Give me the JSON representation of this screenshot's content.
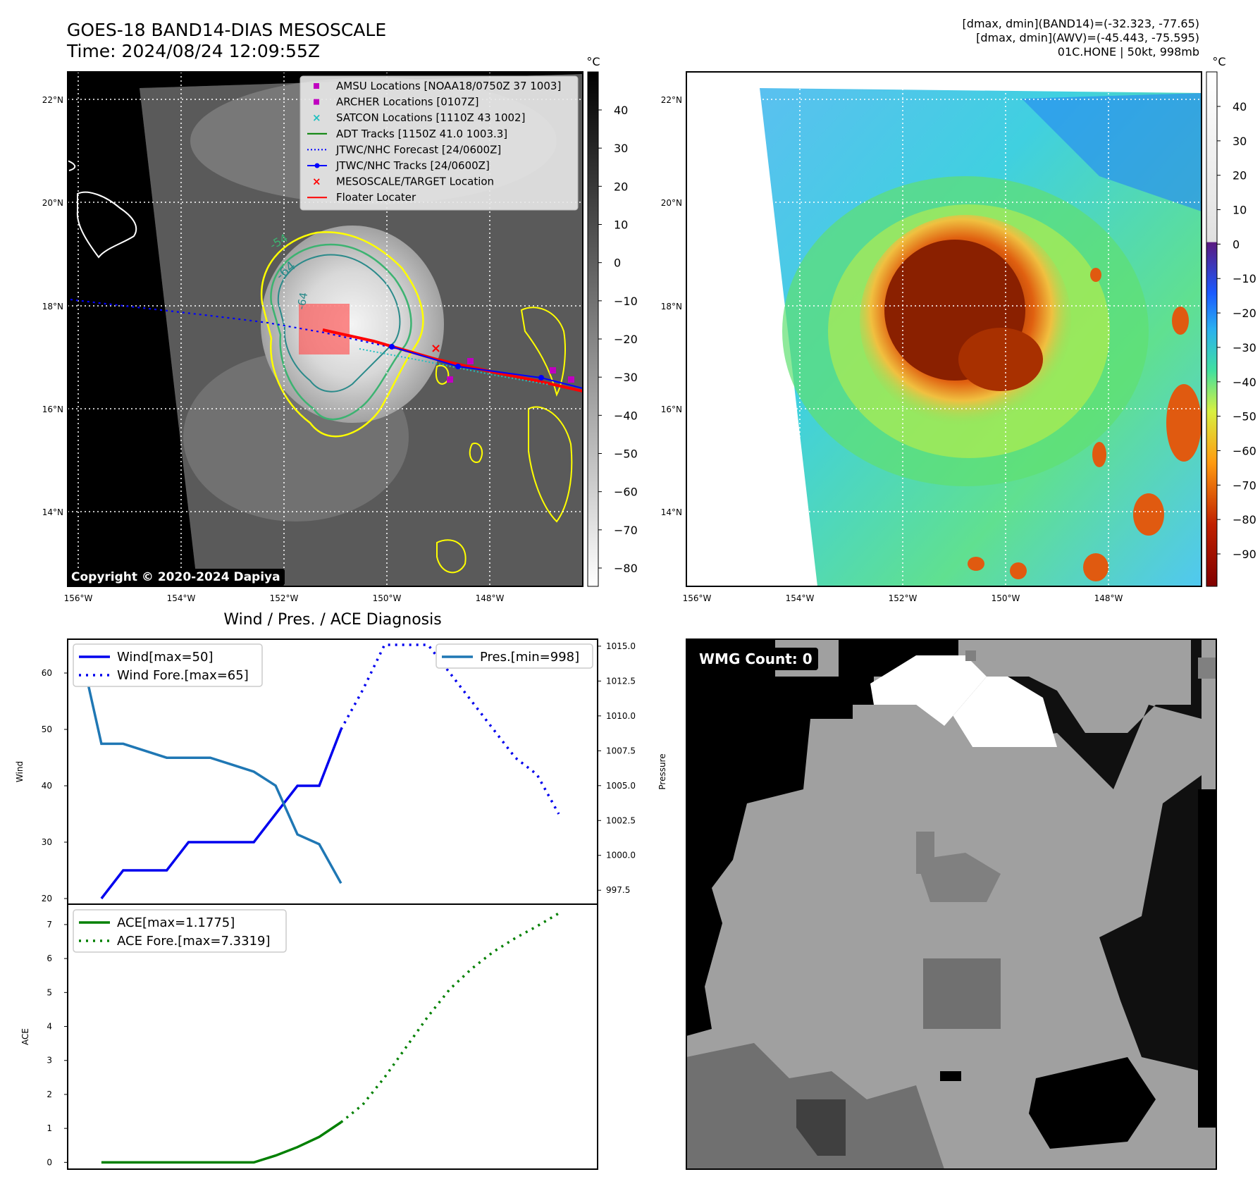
{
  "header": {
    "title": "GOES-18 BAND14-DIAS MESOSCALE",
    "time": "Time: 2024/08/24 12:09:55Z",
    "dmax_band14": "[dmax, dmin](BAND14)=(-32.323, -77.65)",
    "dmax_awv": "[dmax, dmin](AWV)=(-45.443, -75.595)",
    "storm": "01C.HONE | 50kt, 998mb"
  },
  "ir_panel": {
    "copyright": "Copyright © 2020-2024 Dapiya",
    "lat_labels": [
      "22°N",
      "20°N",
      "18°N",
      "16°N",
      "14°N"
    ],
    "lon_labels": [
      "156°W",
      "154°W",
      "152°W",
      "150°W",
      "148°W"
    ],
    "legend": [
      {
        "label": "AMSU Locations [NOAA18/0750Z 37 1003]",
        "color": "#c000c0",
        "marker": "square"
      },
      {
        "label": "ARCHER Locations [0107Z]",
        "color": "#c000c0",
        "marker": "square"
      },
      {
        "label": "SATCON Locations [1110Z 43 1002]",
        "color": "#20c0c0",
        "marker": "x"
      },
      {
        "label": "ADT Tracks [1150Z 41.0 1003.3]",
        "color": "#008000",
        "marker": "line"
      },
      {
        "label": "JTWC/NHC Forecast [24/0600Z]",
        "color": "#0000ff",
        "marker": "dotted"
      },
      {
        "label": "JTWC/NHC Tracks [24/0600Z]",
        "color": "#0000ff",
        "marker": "line-dot"
      },
      {
        "label": "MESOSCALE/TARGET Location",
        "color": "#ff0000",
        "marker": "x"
      },
      {
        "label": "Floater Locater",
        "color": "#ff0000",
        "marker": "line"
      }
    ],
    "contour_labels": [
      "-54",
      "-64",
      "-64"
    ],
    "colorbar_unit": "°C",
    "colorbar_ticks": [
      "40",
      "30",
      "20",
      "10",
      "0",
      "−10",
      "−20",
      "−30",
      "−40",
      "−50",
      "−60",
      "−70",
      "−80"
    ]
  },
  "awv_panel": {
    "lat_labels": [
      "22°N",
      "20°N",
      "18°N",
      "16°N",
      "14°N"
    ],
    "lon_labels": [
      "156°W",
      "154°W",
      "152°W",
      "150°W",
      "148°W"
    ],
    "colorbar_unit": "°C",
    "colorbar_ticks": [
      "40",
      "30",
      "20",
      "10",
      "0",
      "−10",
      "−20",
      "−30",
      "−40",
      "−50",
      "−60",
      "−70",
      "−80",
      "−90"
    ]
  },
  "wmg_panel": {
    "label": "WMG Count: 0"
  },
  "chart_data": [
    {
      "type": "line",
      "title": "Wind / Pres. / ACE Diagnosis",
      "ylabel": "Wind",
      "ylabel_right": "Pressure",
      "ylim": [
        19,
        66
      ],
      "ylim_right": [
        996.5,
        1015.5
      ],
      "yticks": [
        20,
        30,
        40,
        50,
        60
      ],
      "yticks_right": [
        997.5,
        1000.0,
        1002.5,
        1005.0,
        1007.5,
        1010.0,
        1012.5,
        1015.0
      ],
      "series": [
        {
          "name": "Wind[max=50]",
          "color": "#0000ee",
          "style": "solid",
          "axis": "left",
          "x": [
            0,
            1,
            2,
            3,
            4,
            5,
            6,
            7,
            8,
            9,
            10,
            11
          ],
          "values": [
            20,
            25,
            25,
            25,
            30,
            30,
            30,
            30,
            35,
            40,
            40,
            50
          ]
        },
        {
          "name": "Wind Fore.[max=65]",
          "color": "#0000ee",
          "style": "dotted",
          "axis": "left",
          "x": [
            11,
            12,
            13,
            14,
            15,
            16,
            17,
            18,
            19,
            20,
            21
          ],
          "values": [
            50,
            57,
            65,
            65,
            65,
            60,
            55,
            50,
            45,
            42,
            35
          ]
        },
        {
          "name": "Pres.[min=998]",
          "color": "#1f77b4",
          "style": "solid",
          "axis": "right",
          "x": [
            -1,
            0,
            1,
            2,
            3,
            4,
            5,
            6,
            7,
            8,
            9,
            10,
            11
          ],
          "values": [
            1015,
            1008,
            1008,
            1007.5,
            1007,
            1007,
            1007,
            1006.5,
            1006,
            1005,
            1001.5,
            1000.8,
            998
          ]
        }
      ]
    },
    {
      "type": "line",
      "ylabel": "ACE",
      "ylim": [
        -0.2,
        7.6
      ],
      "yticks": [
        0,
        1,
        2,
        3,
        4,
        5,
        6,
        7
      ],
      "series": [
        {
          "name": "ACE[max=1.1775]",
          "color": "#008000",
          "style": "solid",
          "x": [
            0,
            1,
            2,
            3,
            4,
            5,
            6,
            7,
            8,
            9,
            10,
            11
          ],
          "values": [
            0,
            0,
            0,
            0,
            0,
            0,
            0,
            0,
            0.2,
            0.45,
            0.75,
            1.18
          ]
        },
        {
          "name": "ACE Fore.[max=7.3319]",
          "color": "#008000",
          "style": "dotted",
          "x": [
            11,
            12,
            13,
            14,
            15,
            16,
            17,
            18,
            19,
            20,
            21
          ],
          "values": [
            1.18,
            1.7,
            2.5,
            3.4,
            4.3,
            5.1,
            5.7,
            6.2,
            6.6,
            6.95,
            7.33
          ]
        }
      ]
    }
  ]
}
